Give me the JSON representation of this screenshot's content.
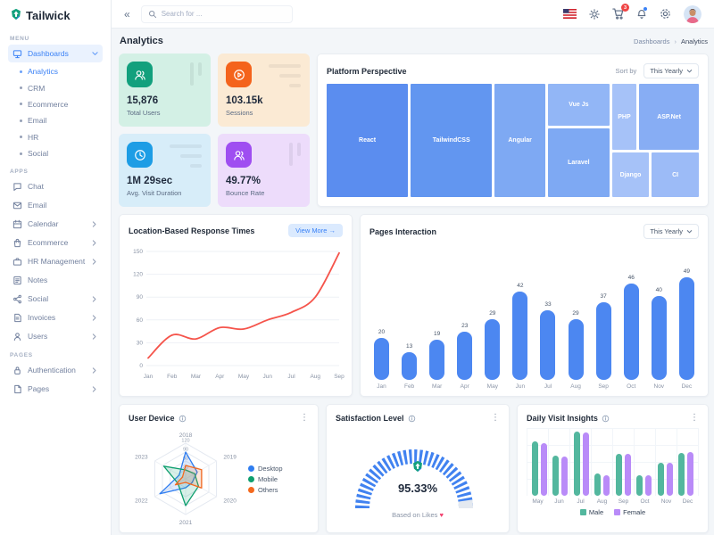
{
  "brand": {
    "name": "Tailwick"
  },
  "ui": {
    "collapse_icon": "«",
    "kebab_icon": "⋮",
    "breadcrumb_separator": "›",
    "icons": {
      "search": "magnifier-icon",
      "header": [
        "us-flag-icon",
        "sun-icon",
        "shopping-cart-icon",
        "bell-icon",
        "gear-icon",
        "avatar"
      ]
    }
  },
  "header": {
    "search": {
      "placeholder": "Search for ..."
    },
    "cart_badge": "3"
  },
  "page": {
    "title": "Analytics",
    "breadcrumb": [
      "Dashboards",
      "Analytics"
    ]
  },
  "sidebar": {
    "sections": [
      {
        "label": "MENU",
        "items": [
          {
            "label": "Dashboards",
            "icon": "monitor",
            "active": true,
            "expanded": true,
            "children": [
              {
                "label": "Analytics",
                "active": true
              },
              {
                "label": "CRM"
              },
              {
                "label": "Ecommerce"
              },
              {
                "label": "Email"
              },
              {
                "label": "HR"
              },
              {
                "label": "Social"
              }
            ]
          }
        ]
      },
      {
        "label": "APPS",
        "items": [
          {
            "label": "Chat",
            "icon": "chat"
          },
          {
            "label": "Email",
            "icon": "mail"
          },
          {
            "label": "Calendar",
            "icon": "calendar",
            "chevron": true
          },
          {
            "label": "Ecommerce",
            "icon": "bag",
            "chevron": true
          },
          {
            "label": "HR Management",
            "icon": "briefcase",
            "chevron": true
          },
          {
            "label": "Notes",
            "icon": "note"
          },
          {
            "label": "Social",
            "icon": "share",
            "chevron": true
          },
          {
            "label": "Invoices",
            "icon": "invoice",
            "chevron": true
          },
          {
            "label": "Users",
            "icon": "user",
            "chevron": true
          }
        ]
      },
      {
        "label": "PAGES",
        "items": [
          {
            "label": "Authentication",
            "icon": "lock",
            "chevron": true
          },
          {
            "label": "Pages",
            "icon": "file",
            "chevron": true
          }
        ]
      }
    ]
  },
  "stats": [
    {
      "value": "15,876",
      "label": "Total Users",
      "icon": "users-group-icon",
      "icon_bg": "#12a07d",
      "card_bg": "#d3f0e5",
      "deco": "bars"
    },
    {
      "value": "103.15k",
      "label": "Sessions",
      "icon": "play-circle-icon",
      "icon_bg": "#f4631c",
      "card_bg": "#fbead4",
      "deco": "lines"
    },
    {
      "value": "1M 29sec",
      "label": "Avg. Visit Duration",
      "icon": "duration-icon",
      "icon_bg": "#1d9de5",
      "card_bg": "#d7edf9",
      "deco": "lines"
    },
    {
      "value": "49.77%",
      "label": "Bounce Rate",
      "icon": "bounce-users-icon",
      "icon_bg": "#9f4ef1",
      "card_bg": "#eddcfb",
      "deco": "bars"
    }
  ],
  "chart_data": [
    {
      "id": "platform-perspective",
      "type": "treemap",
      "title": "Platform Perspective",
      "sort_by": "Sort by",
      "period": "This Yearly",
      "columns": [
        {
          "w": 22.5,
          "cells": [
            {
              "name": "React",
              "h": 100,
              "color": "#5b8def"
            }
          ]
        },
        {
          "w": 22.5,
          "cells": [
            {
              "name": "TailwindCSS",
              "h": 100,
              "color": "#6296f0"
            }
          ]
        },
        {
          "w": 14,
          "cells": [
            {
              "name": "Angular",
              "h": 100,
              "color": "#7ea9f3"
            }
          ]
        },
        {
          "w": 17,
          "cells": [
            {
              "name": "Vue Js",
              "h": 38,
              "color": "#92b6f6"
            },
            {
              "name": "Laravel",
              "h": 62,
              "color": "#7ea9f3"
            }
          ]
        },
        {
          "w": 24,
          "rows": [
            {
              "h": 60,
              "cells": [
                {
                  "name": "PHP",
                  "w": 29,
                  "color": "#a6c2f8"
                },
                {
                  "name": "ASP.Net",
                  "w": 71,
                  "color": "#87adf4"
                }
              ]
            },
            {
              "h": 40,
              "cells": [
                {
                  "name": "Django",
                  "w": 44,
                  "color": "#a6c2f8"
                },
                {
                  "name": "CI",
                  "w": 56,
                  "color": "#9cbbf7"
                }
              ]
            }
          ]
        }
      ]
    },
    {
      "id": "location-response-times",
      "type": "line",
      "title": "Location-Based Response Times",
      "action": "View More →",
      "x": [
        "Jan",
        "Feb",
        "Mar",
        "Apr",
        "May",
        "Jun",
        "Jul",
        "Aug",
        "Sep"
      ],
      "values": [
        10,
        40,
        35,
        50,
        48,
        60,
        70,
        90,
        148
      ],
      "ylim": [
        0,
        150
      ],
      "yticks": [
        0,
        30,
        60,
        90,
        120,
        150
      ],
      "color": "#f5544b",
      "grid": true
    },
    {
      "id": "pages-interaction",
      "type": "bar",
      "title": "Pages Interaction",
      "period": "This Yearly",
      "categories": [
        "Jan",
        "Feb",
        "Mar",
        "Apr",
        "May",
        "Jun",
        "Jul",
        "Aug",
        "Sep",
        "Oct",
        "Nov",
        "Dec"
      ],
      "values": [
        20,
        13,
        19,
        23,
        29,
        42,
        33,
        29,
        37,
        46,
        40,
        49
      ],
      "color": "#4c87f1"
    },
    {
      "id": "user-device",
      "type": "radar",
      "title": "User Device",
      "axes": [
        "2018",
        "2019",
        "2020",
        "2021",
        "2022",
        "2023"
      ],
      "rticks": [
        120,
        90,
        60,
        30
      ],
      "rmax": 120,
      "series": [
        {
          "name": "Desktop",
          "color": "#2f7df0",
          "values": [
            90,
            45,
            25,
            30,
            100,
            25
          ]
        },
        {
          "name": "Mobile",
          "color": "#0e9f6e",
          "values": [
            30,
            35,
            50,
            90,
            30,
            85
          ]
        },
        {
          "name": "Others",
          "color": "#f4691e",
          "values": [
            45,
            62,
            62,
            12,
            40,
            12
          ]
        }
      ],
      "legend_position": "right"
    },
    {
      "id": "satisfaction-level",
      "type": "gauge",
      "title": "Satisfaction Level",
      "value": 95.33,
      "display": "95.33%",
      "caption": "Based on Likes",
      "heart": "♥",
      "color": "#4182f0",
      "track_color": "#e4e9f0"
    },
    {
      "id": "daily-visit-insights",
      "type": "grouped-bar",
      "title": "Daily Visit Insights",
      "categories": [
        "May",
        "Jun",
        "Jul",
        "Aug",
        "Sep",
        "Oct",
        "Nov",
        "Dec"
      ],
      "series": [
        {
          "name": "Male",
          "color": "#53b79e",
          "values": [
            78,
            58,
            92,
            32,
            60,
            30,
            48,
            62
          ]
        },
        {
          "name": "Female",
          "color": "#b98bf8",
          "values": [
            76,
            57,
            91,
            30,
            60,
            30,
            48,
            63
          ]
        }
      ],
      "legend_position": "bottom"
    }
  ]
}
